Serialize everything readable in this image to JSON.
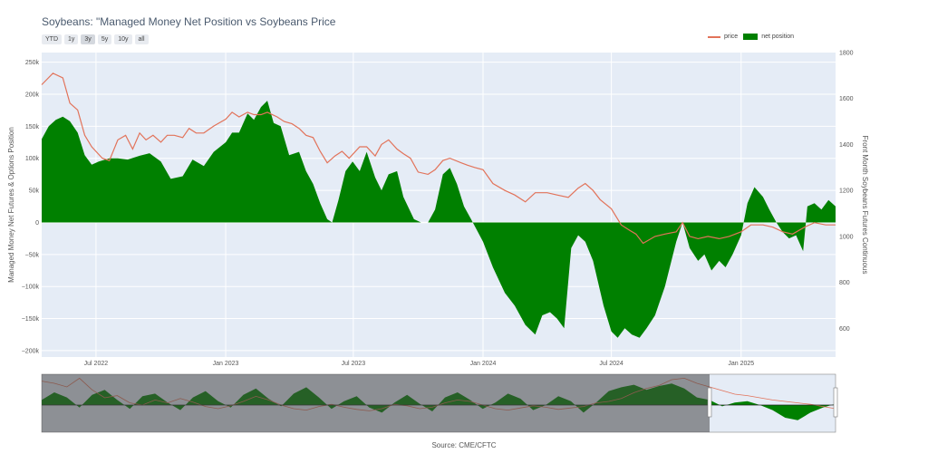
{
  "header": {
    "title": "Soybeans: \"Managed Money Net Position vs Soybeans Price",
    "range_buttons": [
      "YTD",
      "1y",
      "3y",
      "5y",
      "10y",
      "all"
    ],
    "active_range": "3y"
  },
  "footer": {
    "source": "Source: CME/CFTC"
  },
  "chart_data": {
    "type": "area",
    "title": "Soybeans: \"Managed Money Net Position vs Soybeans Price",
    "legend_position": "top-right",
    "grid": true,
    "x_range": [
      "2022-04-15",
      "2025-05-15"
    ],
    "x_ticks": [
      {
        "date": "2022-07-01",
        "label": "Jul 2022"
      },
      {
        "date": "2023-01-01",
        "label": "Jan 2023"
      },
      {
        "date": "2023-07-01",
        "label": "Jul 2023"
      },
      {
        "date": "2024-01-01",
        "label": "Jan 2024"
      },
      {
        "date": "2024-07-01",
        "label": "Jul 2024"
      },
      {
        "date": "2025-01-01",
        "label": "Jan 2025"
      }
    ],
    "y_left": {
      "label": "Managed Money Net Futures & Options Position",
      "range": [
        -210000,
        265000
      ],
      "ticks": [
        250000,
        200000,
        150000,
        100000,
        50000,
        0,
        -50000,
        -100000,
        -150000,
        -200000
      ],
      "tick_labels": [
        "250k",
        "200k",
        "150k",
        "100k",
        "50k",
        "0",
        "−50k",
        "−100k",
        "−150k",
        "−200k"
      ]
    },
    "y_right": {
      "label": "Front Month Soybeans Futures Continuous",
      "range": [
        475,
        1800
      ],
      "ticks": [
        1800,
        1600,
        1400,
        1200,
        1000,
        800,
        600
      ],
      "tick_labels": [
        "1800",
        "1600",
        "1400",
        "1200",
        "1000",
        "800",
        "600"
      ]
    },
    "series": [
      {
        "name": "price",
        "axis": "right",
        "color": "#e2735a",
        "points": [
          [
            "2022-04-15",
            1660
          ],
          [
            "2022-05-01",
            1710
          ],
          [
            "2022-05-15",
            1690
          ],
          [
            "2022-05-25",
            1580
          ],
          [
            "2022-06-05",
            1550
          ],
          [
            "2022-06-15",
            1440
          ],
          [
            "2022-06-25",
            1390
          ],
          [
            "2022-07-10",
            1340
          ],
          [
            "2022-07-20",
            1330
          ],
          [
            "2022-08-01",
            1420
          ],
          [
            "2022-08-12",
            1440
          ],
          [
            "2022-08-22",
            1380
          ],
          [
            "2022-09-01",
            1450
          ],
          [
            "2022-09-10",
            1420
          ],
          [
            "2022-09-20",
            1440
          ],
          [
            "2022-10-01",
            1410
          ],
          [
            "2022-10-10",
            1440
          ],
          [
            "2022-10-20",
            1440
          ],
          [
            "2022-11-01",
            1430
          ],
          [
            "2022-11-10",
            1470
          ],
          [
            "2022-11-20",
            1450
          ],
          [
            "2022-12-01",
            1450
          ],
          [
            "2022-12-15",
            1480
          ],
          [
            "2023-01-01",
            1510
          ],
          [
            "2023-01-10",
            1540
          ],
          [
            "2023-01-20",
            1520
          ],
          [
            "2023-02-01",
            1540
          ],
          [
            "2023-02-10",
            1530
          ],
          [
            "2023-02-20",
            1530
          ],
          [
            "2023-03-01",
            1540
          ],
          [
            "2023-03-15",
            1520
          ],
          [
            "2023-03-25",
            1500
          ],
          [
            "2023-04-05",
            1490
          ],
          [
            "2023-04-15",
            1470
          ],
          [
            "2023-04-25",
            1440
          ],
          [
            "2023-05-05",
            1430
          ],
          [
            "2023-05-15",
            1370
          ],
          [
            "2023-05-25",
            1320
          ],
          [
            "2023-06-05",
            1350
          ],
          [
            "2023-06-15",
            1370
          ],
          [
            "2023-06-25",
            1340
          ],
          [
            "2023-07-10",
            1390
          ],
          [
            "2023-07-20",
            1390
          ],
          [
            "2023-08-01",
            1350
          ],
          [
            "2023-08-10",
            1400
          ],
          [
            "2023-08-20",
            1420
          ],
          [
            "2023-09-01",
            1380
          ],
          [
            "2023-09-10",
            1360
          ],
          [
            "2023-09-20",
            1340
          ],
          [
            "2023-10-01",
            1280
          ],
          [
            "2023-10-15",
            1270
          ],
          [
            "2023-10-25",
            1290
          ],
          [
            "2023-11-05",
            1330
          ],
          [
            "2023-11-15",
            1340
          ],
          [
            "2023-12-01",
            1320
          ],
          [
            "2023-12-10",
            1310
          ],
          [
            "2023-12-20",
            1300
          ],
          [
            "2024-01-01",
            1290
          ],
          [
            "2024-01-15",
            1230
          ],
          [
            "2024-02-01",
            1200
          ],
          [
            "2024-02-15",
            1180
          ],
          [
            "2024-03-01",
            1150
          ],
          [
            "2024-03-15",
            1190
          ],
          [
            "2024-04-01",
            1190
          ],
          [
            "2024-04-15",
            1180
          ],
          [
            "2024-05-01",
            1170
          ],
          [
            "2024-05-15",
            1210
          ],
          [
            "2024-05-25",
            1230
          ],
          [
            "2024-06-05",
            1200
          ],
          [
            "2024-06-15",
            1160
          ],
          [
            "2024-07-01",
            1120
          ],
          [
            "2024-07-15",
            1050
          ],
          [
            "2024-07-25",
            1030
          ],
          [
            "2024-08-05",
            1010
          ],
          [
            "2024-08-15",
            970
          ],
          [
            "2024-09-01",
            1000
          ],
          [
            "2024-09-15",
            1010
          ],
          [
            "2024-10-01",
            1020
          ],
          [
            "2024-10-10",
            1060
          ],
          [
            "2024-10-20",
            1000
          ],
          [
            "2024-11-01",
            990
          ],
          [
            "2024-11-15",
            1000
          ],
          [
            "2024-12-01",
            990
          ],
          [
            "2024-12-15",
            1000
          ],
          [
            "2025-01-01",
            1020
          ],
          [
            "2025-01-15",
            1050
          ],
          [
            "2025-02-01",
            1050
          ],
          [
            "2025-02-15",
            1040
          ],
          [
            "2025-03-01",
            1020
          ],
          [
            "2025-03-15",
            1010
          ],
          [
            "2025-04-01",
            1040
          ],
          [
            "2025-04-15",
            1060
          ],
          [
            "2025-05-01",
            1050
          ],
          [
            "2025-05-15",
            1050
          ]
        ]
      },
      {
        "name": "net position",
        "axis": "left",
        "color": "#008000",
        "points": [
          [
            "2022-04-15",
            130000
          ],
          [
            "2022-04-25",
            150000
          ],
          [
            "2022-05-05",
            160000
          ],
          [
            "2022-05-15",
            165000
          ],
          [
            "2022-05-25",
            158000
          ],
          [
            "2022-06-05",
            140000
          ],
          [
            "2022-06-15",
            105000
          ],
          [
            "2022-06-25",
            90000
          ],
          [
            "2022-07-05",
            95000
          ],
          [
            "2022-07-20",
            100000
          ],
          [
            "2022-08-01",
            100000
          ],
          [
            "2022-08-15",
            98000
          ],
          [
            "2022-09-01",
            104000
          ],
          [
            "2022-09-15",
            108000
          ],
          [
            "2022-10-01",
            95000
          ],
          [
            "2022-10-15",
            68000
          ],
          [
            "2022-11-01",
            72000
          ],
          [
            "2022-11-15",
            98000
          ],
          [
            "2022-12-01",
            88000
          ],
          [
            "2022-12-15",
            110000
          ],
          [
            "2023-01-01",
            125000
          ],
          [
            "2023-01-10",
            140000
          ],
          [
            "2023-01-20",
            140000
          ],
          [
            "2023-02-01",
            170000
          ],
          [
            "2023-02-10",
            160000
          ],
          [
            "2023-02-20",
            180000
          ],
          [
            "2023-03-01",
            190000
          ],
          [
            "2023-03-10",
            155000
          ],
          [
            "2023-03-20",
            150000
          ],
          [
            "2023-04-01",
            105000
          ],
          [
            "2023-04-15",
            110000
          ],
          [
            "2023-04-25",
            80000
          ],
          [
            "2023-05-05",
            60000
          ],
          [
            "2023-05-15",
            30000
          ],
          [
            "2023-05-25",
            5000
          ],
          [
            "2023-06-01",
            0
          ],
          [
            "2023-06-10",
            35000
          ],
          [
            "2023-06-20",
            80000
          ],
          [
            "2023-06-30",
            95000
          ],
          [
            "2023-07-10",
            80000
          ],
          [
            "2023-07-20",
            110000
          ],
          [
            "2023-08-01",
            70000
          ],
          [
            "2023-08-10",
            50000
          ],
          [
            "2023-08-20",
            75000
          ],
          [
            "2023-09-01",
            80000
          ],
          [
            "2023-09-10",
            40000
          ],
          [
            "2023-09-25",
            5000
          ],
          [
            "2023-10-05",
            0
          ],
          [
            "2023-10-15",
            0
          ],
          [
            "2023-10-25",
            20000
          ],
          [
            "2023-11-05",
            75000
          ],
          [
            "2023-11-15",
            85000
          ],
          [
            "2023-11-25",
            60000
          ],
          [
            "2023-12-05",
            25000
          ],
          [
            "2023-12-15",
            5000
          ],
          [
            "2024-01-01",
            -30000
          ],
          [
            "2024-01-15",
            -70000
          ],
          [
            "2024-02-01",
            -110000
          ],
          [
            "2024-02-15",
            -130000
          ],
          [
            "2024-03-01",
            -160000
          ],
          [
            "2024-03-15",
            -175000
          ],
          [
            "2024-03-25",
            -145000
          ],
          [
            "2024-04-05",
            -140000
          ],
          [
            "2024-04-15",
            -150000
          ],
          [
            "2024-04-25",
            -165000
          ],
          [
            "2024-05-05",
            -40000
          ],
          [
            "2024-05-15",
            -20000
          ],
          [
            "2024-05-25",
            -30000
          ],
          [
            "2024-06-05",
            -60000
          ],
          [
            "2024-06-20",
            -130000
          ],
          [
            "2024-07-01",
            -170000
          ],
          [
            "2024-07-10",
            -180000
          ],
          [
            "2024-07-20",
            -165000
          ],
          [
            "2024-07-30",
            -175000
          ],
          [
            "2024-08-10",
            -180000
          ],
          [
            "2024-08-20",
            -165000
          ],
          [
            "2024-09-01",
            -145000
          ],
          [
            "2024-09-15",
            -100000
          ],
          [
            "2024-10-01",
            -30000
          ],
          [
            "2024-10-10",
            0
          ],
          [
            "2024-10-20",
            -40000
          ],
          [
            "2024-11-01",
            -60000
          ],
          [
            "2024-11-10",
            -50000
          ],
          [
            "2024-11-20",
            -75000
          ],
          [
            "2024-12-01",
            -60000
          ],
          [
            "2024-12-10",
            -70000
          ],
          [
            "2024-12-20",
            -50000
          ],
          [
            "2025-01-01",
            -20000
          ],
          [
            "2025-01-10",
            30000
          ],
          [
            "2025-01-20",
            55000
          ],
          [
            "2025-02-01",
            40000
          ],
          [
            "2025-02-10",
            20000
          ],
          [
            "2025-02-20",
            0
          ],
          [
            "2025-03-01",
            -15000
          ],
          [
            "2025-03-10",
            -25000
          ],
          [
            "2025-03-20",
            -20000
          ],
          [
            "2025-03-30",
            -45000
          ],
          [
            "2025-04-05",
            25000
          ],
          [
            "2025-04-15",
            30000
          ],
          [
            "2025-04-25",
            20000
          ],
          [
            "2025-05-05",
            35000
          ],
          [
            "2025-05-15",
            25000
          ]
        ]
      }
    ]
  },
  "navigator": {
    "window_start": "2022-04-15",
    "window_end": "2025-05-15",
    "price_points": [
      1680,
      1650,
      1600,
      1720,
      1560,
      1450,
      1480,
      1380,
      1350,
      1420,
      1380,
      1440,
      1390,
      1330,
      1300,
      1340,
      1400,
      1470,
      1420,
      1350,
      1300,
      1280,
      1330,
      1360,
      1320,
      1290,
      1270,
      1300,
      1360,
      1340,
      1300,
      1320,
      1380,
      1420,
      1400,
      1350,
      1300,
      1280,
      1310,
      1340,
      1320,
      1290,
      1310,
      1330,
      1380,
      1400,
      1440,
      1520,
      1580,
      1620,
      1700,
      1720,
      1650,
      1600,
      1550,
      1500,
      1480,
      1450,
      1420,
      1400,
      1380,
      1360,
      1330,
      1300
    ],
    "position_points": [
      40000,
      100000,
      60000,
      -20000,
      80000,
      120000,
      40000,
      -30000,
      70000,
      90000,
      20000,
      -40000,
      60000,
      110000,
      30000,
      -20000,
      80000,
      130000,
      50000,
      -10000,
      90000,
      140000,
      60000,
      -30000,
      30000,
      70000,
      -20000,
      -60000,
      20000,
      80000,
      10000,
      -50000,
      60000,
      100000,
      40000,
      -30000,
      20000,
      90000,
      50000,
      -40000,
      0,
      70000,
      30000,
      -60000,
      20000,
      110000,
      140000,
      160000,
      120000,
      150000,
      170000,
      130000,
      60000,
      40000,
      -10000,
      20000,
      30000,
      0,
      -40000,
      -100000,
      -120000,
      -60000,
      -20000,
      10000
    ]
  }
}
